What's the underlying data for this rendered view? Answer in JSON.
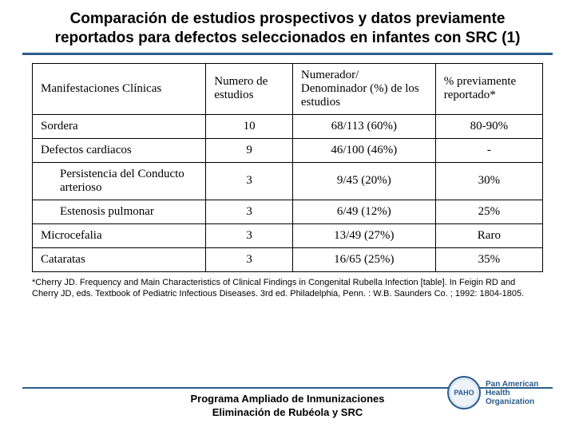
{
  "title": "Comparación de estudios prospectivos y datos previamente reportados para defectos seleccionados en infantes con SRC (1)",
  "table": {
    "headers": {
      "col1": "Manifestaciones Clínicas",
      "col2": "Numero de estudios",
      "col3": "Numerador/ Denominador (%) de los estudios",
      "col4": "% previamente reportado*"
    },
    "rows": [
      {
        "c1": "Sordera",
        "c2": "10",
        "c3": "68/113 (60%)",
        "c4": "80-90%",
        "indent": false
      },
      {
        "c1": "Defectos cardiacos",
        "c2": "9",
        "c3": "46/100 (46%)",
        "c4": "-",
        "indent": false
      },
      {
        "c1": "Persistencia del Conducto arterioso",
        "c2": "3",
        "c3": "9/45 (20%)",
        "c4": "30%",
        "indent": true
      },
      {
        "c1": "Estenosis pulmonar",
        "c2": "3",
        "c3": "6/49 (12%)",
        "c4": "25%",
        "indent": true
      },
      {
        "c1": "Microcefalia",
        "c2": "3",
        "c3": "13/49 (27%)",
        "c4": "Raro",
        "indent": false
      },
      {
        "c1": "Cataratas",
        "c2": "3",
        "c3": "16/65 (25%)",
        "c4": "35%",
        "indent": false
      }
    ]
  },
  "footnote": "*Cherry JD. Frequency and Main Characteristics of Clinical Findings in Congenital Rubella Infection [table]. In Feigin RD and Cherry JD, eds.  Textbook of Pediatric Infectious Diseases. 3rd ed.  Philadelphia, Penn. : W.B. Saunders Co. ; 1992: 1804-1805.",
  "footer": {
    "line1": "Programa Ampliado de Inmunizaciones",
    "line2": "Eliminación de Rubéola y SRC"
  },
  "logo": {
    "org_line1": "Pan American",
    "org_line2": "Health",
    "org_line3": "Organization",
    "mark": "PAHO"
  },
  "colors": {
    "rule": "#2a5c8a",
    "text": "#000000",
    "background": "#ffffff"
  }
}
